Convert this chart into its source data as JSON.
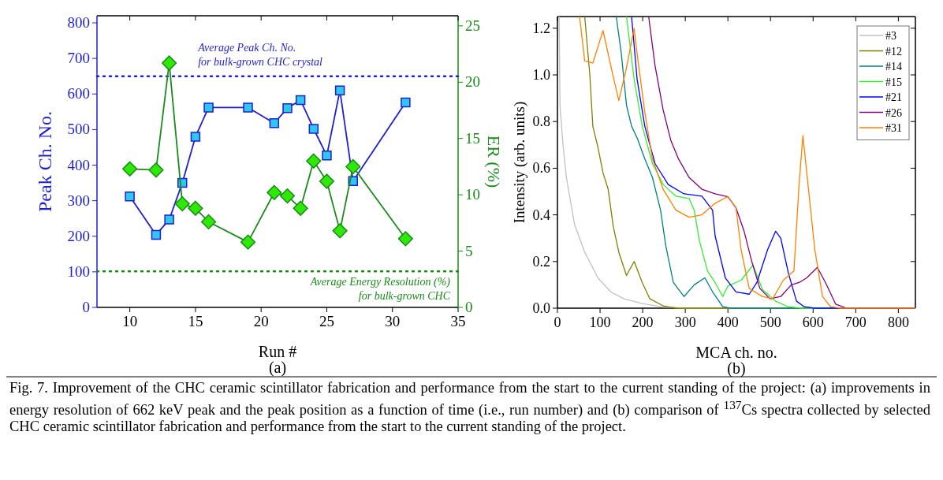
{
  "chart_data": [
    {
      "type": "line",
      "xlabel": "Run #",
      "ylabel": "Peak Ch. No.",
      "y2label": "ER (%)",
      "annotations": [
        "(a)"
      ],
      "x": [
        10,
        12,
        13,
        14,
        15,
        16,
        19,
        21,
        22,
        23,
        24,
        25,
        26,
        27,
        31
      ],
      "xlim": [
        7.5,
        35
      ],
      "xticks": [
        10,
        15,
        20,
        25,
        30,
        35
      ],
      "ylim": [
        0,
        820
      ],
      "yticks": [
        0,
        100,
        200,
        300,
        400,
        500,
        600,
        700,
        800
      ],
      "y2lim": [
        0,
        25.9
      ],
      "y2ticks": [
        0,
        5,
        10,
        15,
        20,
        25
      ],
      "series": [
        {
          "color": "#1f1fcc",
          "marker": "square",
          "values": [
            312,
            204,
            247,
            350,
            480,
            562,
            562,
            518,
            560,
            583,
            502,
            427,
            610,
            355,
            576
          ]
        },
        {
          "color": "#1a8a1a",
          "marker": "diamond",
          "axis": "y2",
          "values": [
            12.3,
            12.2,
            21.7,
            9.2,
            8.8,
            7.6,
            5.8,
            10.2,
            9.9,
            8.8,
            13.0,
            11.2,
            6.8,
            12.5,
            6.1
          ]
        }
      ],
      "ref_lines": [
        {
          "axis": "y",
          "value": 650,
          "label": "Average Peak Ch. No.\nfor bulk-grown CHC crystal",
          "color": "#1f1fcc",
          "line_style": "dotted"
        },
        {
          "axis": "y2",
          "value": 3.2,
          "label": "Average Energy Resolution (%)\nfor bulk-grown CHC",
          "color": "#1a8a1a",
          "line_style": "dotted"
        }
      ]
    },
    {
      "type": "line",
      "xlabel": "MCA ch. no.",
      "ylabel": "Intensity (arb. units)",
      "legend": "top right",
      "marker": "none",
      "annotations": [
        "(b)",
        "Fig. 7. Improvement of the CHC ceramic scintillator fabrication and performance from the start to the current standing of the project: (a) improvements in energy resolution of 662 keV peak and the peak position as a function of time (i.e., run number) and (b) comparison of $^{137}$Cs spectra collected by selected CHC ceramic scintillator fabrication and performance from the start to the current standing of the project."
      ],
      "xlim": [
        0,
        840
      ],
      "xticks": [
        0,
        100,
        200,
        300,
        400,
        500,
        600,
        700,
        800
      ],
      "ylim": [
        0,
        1.25
      ],
      "yticks": [
        {
          "value": 0,
          "label": "0.0"
        },
        0.2,
        0.4,
        0.6,
        0.8,
        {
          "value": 1,
          "label": "1.0"
        },
        1.2
      ],
      "series": [
        {
          "name": "#3",
          "color": "#c0c0c0",
          "x": [
            4,
            6,
            13,
            21,
            40,
            64,
            95,
            125,
            156,
            199,
            248,
            300,
            840
          ],
          "values": [
            1.25,
            0.87,
            0.7,
            0.56,
            0.36,
            0.24,
            0.13,
            0.07,
            0.04,
            0.02,
            0.005,
            0,
            0
          ]
        },
        {
          "name": "#12",
          "color": "#808000",
          "x": [
            64,
            76,
            83,
            95,
            107,
            119,
            131,
            144,
            162,
            180,
            199,
            217,
            248,
            278,
            840
          ],
          "values": [
            1.25,
            1.0,
            0.78,
            0.69,
            0.58,
            0.51,
            0.35,
            0.24,
            0.14,
            0.2,
            0.11,
            0.04,
            0.01,
            0,
            0
          ]
        },
        {
          "name": "#14",
          "color": "#008080",
          "x": [
            138,
            150,
            162,
            174,
            187,
            205,
            223,
            242,
            254,
            272,
            297,
            321,
            346,
            364,
            388,
            407,
            840
          ],
          "values": [
            1.25,
            1.09,
            0.87,
            0.78,
            0.73,
            0.64,
            0.56,
            0.42,
            0.27,
            0.11,
            0.05,
            0.1,
            0.13,
            0.07,
            0.006,
            0,
            0
          ]
        },
        {
          "name": "#15",
          "color": "#33ee33",
          "x": [
            162,
            180,
            199,
            223,
            248,
            278,
            309,
            321,
            333,
            352,
            370,
            388,
            400,
            431,
            459,
            481,
            512,
            542,
            573,
            840
          ],
          "values": [
            1.25,
            0.98,
            0.78,
            0.62,
            0.53,
            0.48,
            0.47,
            0.42,
            0.29,
            0.16,
            0.11,
            0.05,
            0.095,
            0.12,
            0.185,
            0.08,
            0.03,
            0.006,
            0,
            0
          ]
        },
        {
          "name": "#21",
          "color": "#0000ff",
          "x": [
            174,
            187,
            205,
            229,
            260,
            297,
            339,
            364,
            370,
            394,
            419,
            450,
            468,
            493,
            512,
            524,
            542,
            561,
            579,
            604,
            840
          ],
          "values": [
            1.25,
            0.98,
            0.78,
            0.62,
            0.53,
            0.49,
            0.48,
            0.42,
            0.31,
            0.13,
            0.07,
            0.06,
            0.11,
            0.25,
            0.33,
            0.3,
            0.15,
            0.03,
            0.006,
            0,
            0
          ]
        },
        {
          "name": "#26",
          "color": "#800080",
          "x": [
            214,
            229,
            248,
            266,
            284,
            309,
            339,
            370,
            400,
            419,
            438,
            456,
            475,
            499,
            524,
            549,
            567,
            585,
            610,
            629,
            653,
            678,
            840
          ],
          "values": [
            1.25,
            1.04,
            0.85,
            0.72,
            0.64,
            0.56,
            0.51,
            0.49,
            0.478,
            0.43,
            0.33,
            0.2,
            0.085,
            0.04,
            0.05,
            0.1,
            0.11,
            0.13,
            0.175,
            0.11,
            0.017,
            0,
            0
          ]
        },
        {
          "name": "#31",
          "color": "#ff8000",
          "x": [
            52,
            64,
            83,
            107,
            125,
            144,
            162,
            180,
            187,
            205,
            223,
            248,
            278,
            309,
            339,
            370,
            400,
            419,
            431,
            450,
            481,
            505,
            530,
            555,
            567,
            576,
            588,
            604,
            622,
            641,
            665,
            840
          ],
          "values": [
            1.25,
            1.06,
            1.05,
            1.19,
            1.04,
            0.89,
            1.03,
            1.2,
            1.09,
            0.84,
            0.64,
            0.51,
            0.42,
            0.39,
            0.4,
            0.45,
            0.478,
            0.43,
            0.25,
            0.085,
            0.05,
            0.04,
            0.12,
            0.16,
            0.53,
            0.74,
            0.53,
            0.25,
            0.05,
            0.006,
            0,
            0
          ]
        }
      ]
    }
  ]
}
